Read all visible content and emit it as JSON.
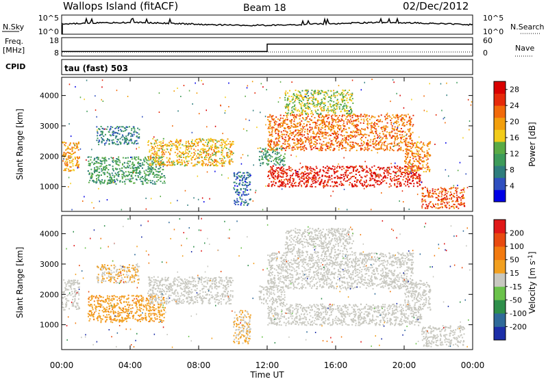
{
  "header": {
    "station": "Wallops Island (fitACF)",
    "beam": "Beam 18",
    "date": "02/Dec/2012"
  },
  "noise_panel": {
    "left_label": "N.Sky",
    "left_ticks": [
      "10^5",
      "10^0"
    ],
    "right_ticks": [
      "10^5",
      "10^0"
    ],
    "right_label": "N.Search"
  },
  "freq_panel": {
    "left_label_line1": "Freq.",
    "left_label_line2": "[MHz]",
    "left_ticks": [
      "18",
      "8"
    ],
    "right_ticks": [
      "60",
      "0"
    ],
    "right_label": "Nave",
    "cpid_label": "CPID",
    "cpid_text": "tau (fast) 503"
  },
  "axes": {
    "xlabel": "Time UT",
    "xticks": [
      "00:00",
      "04:00",
      "08:00",
      "12:00",
      "16:00",
      "20:00",
      "00:00"
    ],
    "ylabel": "Slant Range [km]",
    "yticks": [
      "1000",
      "2000",
      "3000",
      "4000"
    ]
  },
  "colors": {
    "power": [
      "#0000e6",
      "#2f4fbf",
      "#2e7d7d",
      "#3d9b5a",
      "#5aab45",
      "#f2cc1a",
      "#f29f0d",
      "#f26a0a",
      "#e62a0a",
      "#d90000"
    ],
    "velocity": [
      "#1c2ea8",
      "#2f6a99",
      "#2e8f4a",
      "#6ac24a",
      "#c8c8c0",
      "#f2a020",
      "#f27a10",
      "#e84a10",
      "#e01818"
    ]
  },
  "chart_data": [
    {
      "type": "heatmap",
      "name": "power",
      "xlabel": "Time UT",
      "ylabel": "Slant Range [km]",
      "xlim_hours": [
        0,
        24
      ],
      "ylim_km": [
        180,
        4600
      ],
      "colorbar": {
        "label": "Power [dB]",
        "ticks": [
          "28",
          "24",
          "20",
          "16",
          "12",
          "8",
          "4"
        ],
        "range": [
          0,
          30
        ]
      },
      "echo_regions": [
        {
          "t": [
            0.0,
            1.0
          ],
          "r": [
            1500,
            2500
          ],
          "value": 20
        },
        {
          "t": [
            1.5,
            6.0
          ],
          "r": [
            1100,
            2000
          ],
          "value": 11
        },
        {
          "t": [
            2.0,
            4.5
          ],
          "r": [
            2400,
            3000
          ],
          "value": 8
        },
        {
          "t": [
            5.0,
            10.0
          ],
          "r": [
            1700,
            2600
          ],
          "value": 18
        },
        {
          "t": [
            10.0,
            11.0
          ],
          "r": [
            400,
            1500
          ],
          "value": 6
        },
        {
          "t": [
            11.5,
            13.0
          ],
          "r": [
            1700,
            2300
          ],
          "value": 10
        },
        {
          "t": [
            12.0,
            21.0
          ],
          "r": [
            1000,
            1700
          ],
          "value": 27
        },
        {
          "t": [
            12.0,
            20.5
          ],
          "r": [
            2200,
            3400
          ],
          "value": 22
        },
        {
          "t": [
            13.0,
            17.0
          ],
          "r": [
            3400,
            4200
          ],
          "value": 15
        },
        {
          "t": [
            20.0,
            21.5
          ],
          "r": [
            1500,
            2500
          ],
          "value": 21
        },
        {
          "t": [
            21.0,
            23.5
          ],
          "r": [
            300,
            1000
          ],
          "value": 24
        }
      ]
    },
    {
      "type": "heatmap",
      "name": "velocity",
      "xlabel": "Time UT",
      "ylabel": "Slant Range [km]",
      "xlim_hours": [
        0,
        24
      ],
      "ylim_km": [
        180,
        4600
      ],
      "colorbar": {
        "label": "Velocity [m s^-1]",
        "ticks": [
          "200",
          "100",
          "50",
          "15",
          "-15",
          "-50",
          "-100",
          "-200"
        ],
        "range": [
          -250,
          250
        ]
      },
      "echo_regions": [
        {
          "t": [
            0.0,
            1.0
          ],
          "r": [
            1500,
            2500
          ],
          "value": 0
        },
        {
          "t": [
            1.5,
            6.0
          ],
          "r": [
            1100,
            2000
          ],
          "value": 70
        },
        {
          "t": [
            2.0,
            4.5
          ],
          "r": [
            2400,
            3000
          ],
          "value": 30
        },
        {
          "t": [
            5.0,
            10.0
          ],
          "r": [
            1700,
            2600
          ],
          "value": 0
        },
        {
          "t": [
            10.0,
            11.0
          ],
          "r": [
            400,
            1500
          ],
          "value": 30
        },
        {
          "t": [
            11.5,
            13.0
          ],
          "r": [
            1700,
            2300
          ],
          "value": 0
        },
        {
          "t": [
            12.0,
            21.0
          ],
          "r": [
            1000,
            1700
          ],
          "value": 0
        },
        {
          "t": [
            12.0,
            20.5
          ],
          "r": [
            2200,
            3400
          ],
          "value": 0
        },
        {
          "t": [
            13.0,
            17.0
          ],
          "r": [
            3400,
            4200
          ],
          "value": 0
        },
        {
          "t": [
            20.0,
            21.5
          ],
          "r": [
            1500,
            2500
          ],
          "value": 0
        },
        {
          "t": [
            21.0,
            23.5
          ],
          "r": [
            300,
            1000
          ],
          "value": 0
        }
      ]
    }
  ],
  "freq_series": {
    "hours": [
      0.0,
      12.0,
      12.0,
      24.0
    ],
    "freq_mhz": [
      10.5,
      10.5,
      14.5,
      14.5
    ]
  }
}
